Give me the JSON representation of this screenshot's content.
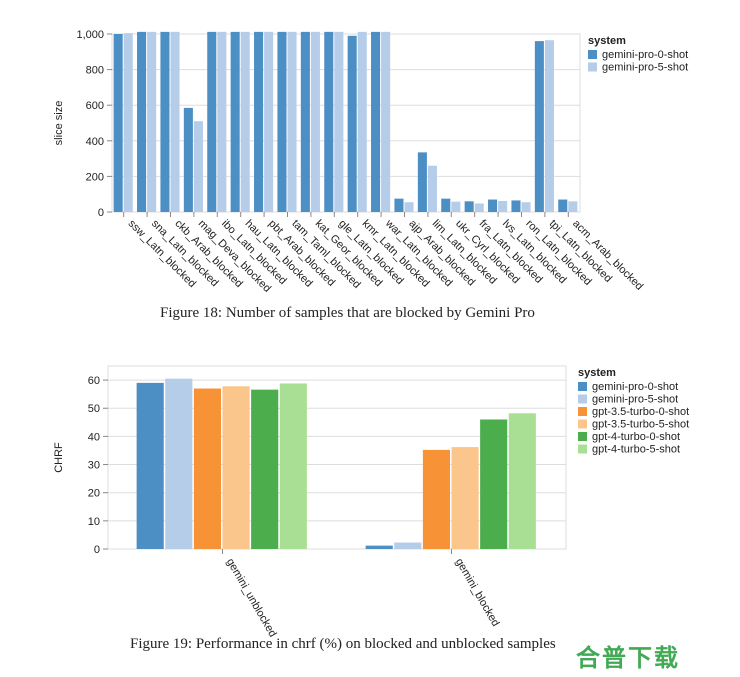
{
  "chart_data": [
    {
      "type": "bar",
      "title": "",
      "xlabel": "",
      "ylabel": "slice size",
      "ylim": [
        0,
        1000
      ],
      "yticks": [
        0,
        200,
        400,
        600,
        800,
        1000
      ],
      "ytick_labels": [
        "0",
        "200",
        "400",
        "600",
        "800",
        "1,000"
      ],
      "legend_title": "system",
      "legend_position": "top-right",
      "categories": [
        "ssw_Latn_blocked",
        "sna_Latn_blocked",
        "ckb_Arab_blocked",
        "mag_Deva_blocked",
        "ibo_Latn_blocked",
        "hau_Latn_blocked",
        "pbt_Arab_blocked",
        "tam_Taml_blocked",
        "kat_Geor_blocked",
        "gle_Latn_blocked",
        "kmr_Latn_blocked",
        "war_Latn_blocked",
        "ajp_Arab_blocked",
        "lim_Latn_blocked",
        "ukr_Cyrl_blocked",
        "fra_Latn_blocked",
        "lvs_Latn_blocked",
        "ron_Latn_blocked",
        "tpi_Latn_blocked",
        "acm_Arab_blocked"
      ],
      "series": [
        {
          "name": "gemini-pro-0-shot",
          "color": "#4c8fc4",
          "values": [
            1000,
            1012,
            1012,
            585,
            1012,
            1012,
            1012,
            1012,
            1012,
            1012,
            990,
            1012,
            75,
            335,
            75,
            60,
            70,
            65,
            960,
            70
          ]
        },
        {
          "name": "gemini-pro-5-shot",
          "color": "#b6cdea",
          "values": [
            1005,
            1012,
            1012,
            510,
            1012,
            1012,
            1012,
            1012,
            1012,
            1012,
            1012,
            1012,
            55,
            260,
            58,
            48,
            62,
            55,
            965,
            60
          ]
        }
      ]
    },
    {
      "type": "bar",
      "title": "",
      "xlabel": "",
      "ylabel": "CHRF",
      "ylim": [
        0,
        65
      ],
      "yticks": [
        0,
        10,
        20,
        30,
        40,
        50,
        60
      ],
      "ytick_labels": [
        "0",
        "10",
        "20",
        "30",
        "40",
        "50",
        "60"
      ],
      "legend_title": "system",
      "legend_position": "top-right",
      "categories": [
        "gemini_unblocked",
        "gemini_blocked"
      ],
      "series": [
        {
          "name": "gemini-pro-0-shot",
          "color": "#4c8fc4",
          "values": [
            59,
            1.2
          ]
        },
        {
          "name": "gemini-pro-5-shot",
          "color": "#b6cdea",
          "values": [
            60.5,
            2.3
          ]
        },
        {
          "name": "gpt-3.5-turbo-0-shot",
          "color": "#f89236",
          "values": [
            57,
            35.2
          ]
        },
        {
          "name": "gpt-3.5-turbo-5-shot",
          "color": "#fbc68c",
          "values": [
            57.8,
            36.2
          ]
        },
        {
          "name": "gpt-4-turbo-0-shot",
          "color": "#4cad4c",
          "values": [
            56.6,
            46
          ]
        },
        {
          "name": "gpt-4-turbo-5-shot",
          "color": "#a8df94",
          "values": [
            58.8,
            48.2
          ]
        }
      ]
    }
  ],
  "captions": {
    "fig18": "Figure 18: Number of samples that are blocked by Gemini Pro",
    "fig19": "Figure 19: Performance in chrf (%) on blocked and unblocked samples"
  },
  "watermark": "合普下载"
}
